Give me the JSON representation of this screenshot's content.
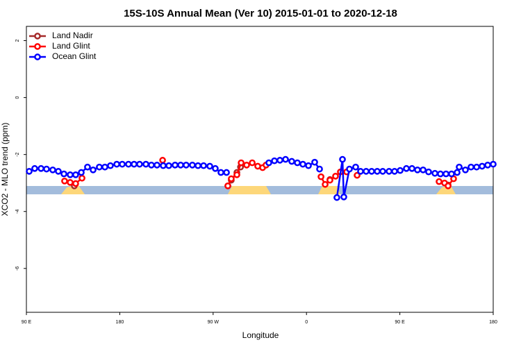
{
  "chart_data": {
    "type": "line",
    "title": "15S-10S Annual Mean (Ver 10)   2015-01-01 to 2020-12-18",
    "x_label": "Longitude",
    "y_label": "XCO2 - MLO trend (ppm)",
    "xlim": [
      90,
      540
    ],
    "xticks": [
      {
        "value": 90,
        "label": "90 E"
      },
      {
        "value": 180,
        "label": "180"
      },
      {
        "value": 270,
        "label": "90 W"
      },
      {
        "value": 360,
        "label": "0"
      },
      {
        "value": 450,
        "label": "90 E"
      },
      {
        "value": 540,
        "label": "180"
      }
    ],
    "ylim": [
      -7.54,
      2.5
    ],
    "yticks": [
      2,
      0,
      -2,
      -4,
      -6
    ],
    "legend": "top-left",
    "series": [
      {
        "name": "Land Nadir",
        "color": "#a52a2a",
        "x": [
          136.2,
          null,
          284.2,
          287.5,
          292.9,
          296.4,
          null,
          382.6,
          null,
          496.5
        ],
        "values": [
          -3.1,
          null,
          -3.1,
          -2.9,
          -2.63,
          -2.44,
          null,
          -2.88,
          null,
          -3.07
        ]
      },
      {
        "name": "Land Glint",
        "color": "#ff0000",
        "x": [
          126.8,
          132.2,
          137.5,
          143.6,
          null,
          221.3,
          null,
          284.2,
          287.5,
          292.9,
          297.0,
          302.3,
          307.7,
          313.0,
          317.7,
          321.0,
          null,
          374.0,
          378.0,
          382.6,
          388.0,
          392.7,
          398.7,
          null,
          408.8,
          null,
          487.8,
          493.1,
          496.5,
          501.8
        ],
        "values": [
          -2.93,
          -2.98,
          -3.02,
          -2.83,
          null,
          -2.2,
          null,
          -3.1,
          -2.85,
          -2.71,
          -2.29,
          -2.37,
          -2.29,
          -2.41,
          -2.46,
          -2.37,
          null,
          -2.78,
          -3.05,
          -2.9,
          -2.76,
          -2.61,
          -2.61,
          null,
          -2.73,
          null,
          -2.95,
          -3.0,
          -3.1,
          -2.85
        ]
      },
      {
        "name": "Ocean Glint",
        "color": "#0000ff",
        "x": [
          92.7,
          98.0,
          104.1,
          109.4,
          115.4,
          120.8,
          126.2,
          132.2,
          137.5,
          142.9,
          148.9,
          154.3,
          160.3,
          165.7,
          171.0,
          177.1,
          182.4,
          188.4,
          193.8,
          199.1,
          205.2,
          210.5,
          215.9,
          221.9,
          227.3,
          233.3,
          238.7,
          244.0,
          250.0,
          255.4,
          260.8,
          266.8,
          272.1,
          277.5,
          282.9,
          null,
          323.7,
          329.1,
          334.4,
          339.8,
          345.8,
          351.2,
          356.5,
          361.9,
          367.9,
          372.6,
          null,
          389.3,
          394.7,
          396.0,
          401.4,
          407.4,
          412.1,
          417.5,
          422.8,
          428.2,
          433.5,
          439.6,
          444.9,
          450.3,
          456.3,
          461.7,
          467.0,
          472.4,
          477.7,
          483.8,
          489.1,
          494.5,
          499.8,
          505.2,
          507.2,
          513.2,
          518.6,
          524.0,
          529.3,
          534.7,
          540.0
        ],
        "values": [
          -2.59,
          -2.49,
          -2.49,
          -2.51,
          -2.54,
          -2.59,
          -2.68,
          -2.71,
          -2.71,
          -2.63,
          -2.44,
          -2.54,
          -2.44,
          -2.44,
          -2.39,
          -2.34,
          -2.34,
          -2.34,
          -2.34,
          -2.34,
          -2.34,
          -2.37,
          -2.37,
          -2.39,
          -2.39,
          -2.37,
          -2.37,
          -2.37,
          -2.37,
          -2.39,
          -2.39,
          -2.41,
          -2.49,
          -2.63,
          -2.63,
          null,
          -2.29,
          -2.22,
          -2.2,
          -2.17,
          -2.24,
          -2.29,
          -2.34,
          -2.39,
          -2.27,
          -2.51,
          null,
          -3.51,
          -2.17,
          -3.49,
          -2.51,
          -2.44,
          -2.59,
          -2.59,
          -2.59,
          -2.59,
          -2.59,
          -2.59,
          -2.59,
          -2.56,
          -2.49,
          -2.49,
          -2.54,
          -2.54,
          -2.61,
          -2.66,
          -2.68,
          -2.68,
          -2.68,
          -2.63,
          -2.44,
          -2.54,
          -2.44,
          -2.44,
          -2.41,
          -2.37,
          -2.34
        ]
      }
    ]
  }
}
